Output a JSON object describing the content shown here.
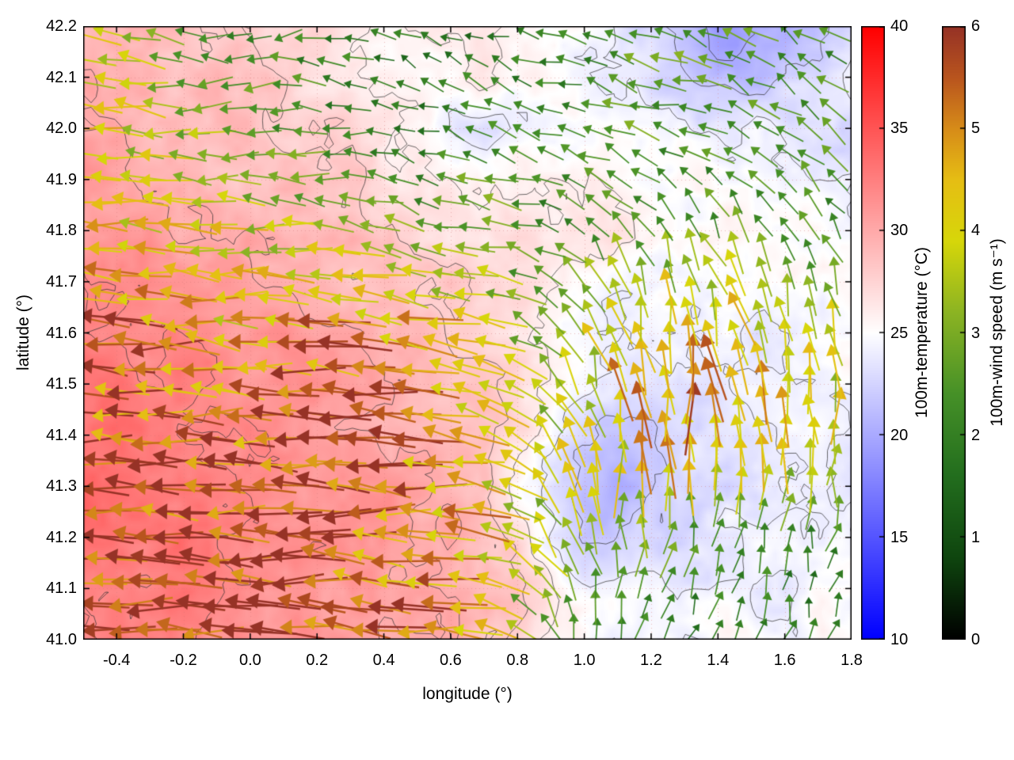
{
  "figure": {
    "background": "#ffffff",
    "grid_color": "#d77878",
    "contour_color": "#2d2d2d"
  },
  "chart_data": [
    {
      "type": "heatmap",
      "name": "100m-temperature",
      "xlabel": "longitude (°)",
      "ylabel": "latitude (°)",
      "units": "°C",
      "x_range": [
        -0.5,
        1.8
      ],
      "y_range": [
        41.0,
        42.2
      ],
      "x_tick_labels": [
        "-0.4",
        "-0.2",
        "0.0",
        "0.2",
        "0.4",
        "0.6",
        "0.8",
        "1.0",
        "1.2",
        "1.4",
        "1.6",
        "1.8"
      ],
      "x_tick_values": [
        -0.4,
        -0.2,
        0,
        0.2,
        0.4,
        0.6,
        0.8,
        1,
        1.2,
        1.4,
        1.6,
        1.8
      ],
      "y_tick_labels": [
        "41.0",
        "41.1",
        "41.2",
        "41.3",
        "41.4",
        "41.5",
        "41.6",
        "41.7",
        "41.8",
        "41.9",
        "42.0",
        "42.1",
        "42.2"
      ],
      "y_tick_values": [
        41,
        41.1,
        41.2,
        41.3,
        41.4,
        41.5,
        41.6,
        41.7,
        41.8,
        41.9,
        42,
        42.1,
        42.2
      ],
      "colorbar": {
        "label": "100m-temperature (°C)",
        "range": [
          10,
          40
        ],
        "tick_labels": [
          "10",
          "15",
          "20",
          "25",
          "30",
          "35",
          "40"
        ],
        "tick_values": [
          10,
          15,
          20,
          25,
          30,
          35,
          40
        ],
        "stops": [
          [
            10,
            "#0000ff"
          ],
          [
            25,
            "#ffffff"
          ],
          [
            40,
            "#ff0000"
          ]
        ]
      },
      "lon": [
        -0.5,
        -0.4,
        -0.3,
        -0.2,
        -0.1,
        0,
        0.1,
        0.2,
        0.3,
        0.4,
        0.5,
        0.6,
        0.7,
        0.8,
        0.9,
        1,
        1.1,
        1.2,
        1.3,
        1.4,
        1.5,
        1.6,
        1.7,
        1.8
      ],
      "lat": [
        42.2,
        42.1,
        42,
        41.9,
        41.8,
        41.7,
        41.6,
        41.5,
        41.4,
        41.3,
        41.2,
        41.1,
        41
      ],
      "values": [
        [
          29,
          29,
          29,
          29,
          28,
          28,
          27,
          27,
          26,
          26,
          26,
          26,
          27,
          26,
          25,
          25,
          24,
          23,
          21,
          19,
          20,
          21,
          22,
          23
        ],
        [
          30,
          29,
          29,
          29,
          29,
          28,
          28,
          27,
          27,
          26,
          26,
          25,
          26,
          26,
          25,
          24,
          24,
          23,
          22,
          21,
          21,
          22,
          23,
          24
        ],
        [
          30,
          30,
          29,
          29,
          29,
          29,
          28,
          28,
          27,
          26,
          25,
          24,
          23,
          24,
          25,
          25,
          25,
          24,
          24,
          24,
          24,
          24,
          23,
          23
        ],
        [
          31,
          30,
          30,
          30,
          29,
          29,
          29,
          28,
          28,
          27,
          27,
          26,
          26,
          26,
          26,
          26,
          25,
          25,
          25,
          25,
          25,
          24,
          24,
          24
        ],
        [
          31,
          31,
          31,
          30,
          30,
          30,
          29,
          29,
          29,
          28,
          28,
          27,
          27,
          27,
          26,
          26,
          26,
          25,
          25,
          25,
          25,
          25,
          25,
          24
        ],
        [
          32,
          32,
          31,
          31,
          31,
          30,
          30,
          30,
          29,
          29,
          28,
          28,
          27,
          27,
          26,
          26,
          25,
          25,
          25,
          25,
          25,
          25,
          25,
          25
        ],
        [
          33,
          32,
          32,
          32,
          31,
          31,
          31,
          30,
          30,
          29,
          29,
          28,
          28,
          27,
          26,
          25,
          24,
          24,
          24,
          24,
          24,
          24,
          25,
          25
        ],
        [
          33,
          33,
          32,
          32,
          32,
          31,
          31,
          31,
          30,
          30,
          29,
          29,
          28,
          27,
          26,
          24,
          23,
          23,
          23,
          23,
          24,
          24,
          24,
          25
        ],
        [
          33,
          33,
          33,
          32,
          32,
          32,
          31,
          31,
          31,
          30,
          30,
          29,
          28,
          27,
          25,
          23,
          22,
          22,
          23,
          23,
          23,
          24,
          24,
          24
        ],
        [
          34,
          33,
          33,
          33,
          32,
          32,
          32,
          31,
          31,
          31,
          30,
          29,
          28,
          26,
          24,
          21,
          20,
          22,
          23,
          23,
          23,
          24,
          24,
          24
        ],
        [
          33,
          33,
          33,
          33,
          32,
          32,
          32,
          32,
          31,
          31,
          30,
          30,
          29,
          27,
          24,
          22,
          22,
          23,
          23,
          24,
          24,
          24,
          24,
          24
        ],
        [
          33,
          32,
          32,
          33,
          32,
          32,
          31,
          31,
          31,
          31,
          30,
          30,
          29,
          28,
          26,
          24,
          24,
          24,
          24,
          24,
          24,
          24,
          25,
          25
        ],
        [
          32,
          32,
          32,
          32,
          31,
          31,
          31,
          31,
          31,
          30,
          30,
          30,
          29,
          28,
          26,
          25,
          24,
          24,
          24,
          25,
          25,
          25,
          25,
          25
        ]
      ]
    },
    {
      "type": "quiver",
      "name": "100m-wind",
      "units": "m s⁻¹",
      "x_range": [
        -0.5,
        1.7
      ],
      "y_range": [
        41.0,
        42.2
      ],
      "colorbar": {
        "label": "100m-wind speed (m s⁻¹)",
        "range": [
          0,
          6
        ],
        "tick_labels": [
          "0",
          "1",
          "2",
          "3",
          "4",
          "5",
          "6"
        ],
        "tick_values": [
          0,
          1,
          2,
          3,
          4,
          5,
          6
        ],
        "stops": [
          [
            0,
            "#000000"
          ],
          [
            0.8,
            "#0f460f"
          ],
          [
            1.6,
            "#236e1e"
          ],
          [
            2.4,
            "#469128"
          ],
          [
            3.2,
            "#8cb423"
          ],
          [
            3.9,
            "#d7d70a"
          ],
          [
            4.5,
            "#e6be14"
          ],
          [
            5,
            "#d78c19"
          ],
          [
            5.5,
            "#b9551e"
          ],
          [
            6,
            "#963226"
          ]
        ]
      },
      "lon": [
        -0.5,
        -0.3,
        -0.1,
        0.1,
        0.3,
        0.5,
        0.7,
        0.9,
        1.1,
        1.3,
        1.5,
        1.7
      ],
      "lat": [
        42.2,
        42,
        41.8,
        41.6,
        41.4,
        41.2,
        41
      ],
      "u": [
        [
          -3.5,
          -3,
          -2.5,
          -2,
          -2,
          -1.5,
          -1.5,
          -2,
          -2,
          -2.5,
          -2,
          -2
        ],
        [
          -4,
          -3.5,
          -3,
          -2.5,
          -2,
          -1.5,
          -2,
          -2,
          -2.5,
          -2.5,
          -2,
          -2
        ],
        [
          -4.5,
          -4,
          -4,
          -3.5,
          -3,
          -2.5,
          -3,
          -2,
          -1.5,
          -1,
          -1.5,
          -1
        ],
        [
          -5,
          -5,
          -4.5,
          -4.5,
          -5,
          -4.5,
          -4,
          -2,
          -1,
          -0.5,
          -1,
          -0.5
        ],
        [
          -5.5,
          -5.5,
          -5,
          -5.5,
          -5.5,
          -5,
          -4.5,
          -2,
          -0.5,
          0,
          -0.5,
          0
        ],
        [
          -6,
          -5.5,
          -6,
          -5.5,
          -5.5,
          -5,
          -4.5,
          -2,
          0,
          0.5,
          0.5,
          0.5
        ],
        [
          -5.5,
          -6,
          -5.5,
          -6,
          -5.5,
          -5,
          -4.5,
          -1,
          0.5,
          0.5,
          0.5,
          0.5
        ]
      ],
      "v": [
        [
          0.5,
          0.5,
          0,
          -0.5,
          0.5,
          1,
          0.5,
          0.5,
          1,
          1,
          1.5,
          1
        ],
        [
          0,
          0.5,
          0,
          0.5,
          0,
          0.5,
          1,
          0.5,
          1,
          0.5,
          1,
          1.5
        ],
        [
          0,
          0.5,
          0,
          0.5,
          0.5,
          1,
          0.5,
          1,
          2,
          2.5,
          2,
          2
        ],
        [
          0.5,
          0,
          0.5,
          0,
          0.5,
          1,
          1,
          2,
          4,
          4.5,
          4,
          3.5
        ],
        [
          0,
          0.5,
          0,
          0.5,
          0,
          0.5,
          1,
          3,
          4.5,
          5,
          4.5,
          4
        ],
        [
          0.5,
          0,
          0.5,
          0,
          0.5,
          0,
          0.5,
          3,
          3,
          2.5,
          2,
          2
        ],
        [
          0,
          0.5,
          0,
          0,
          0.5,
          0.5,
          0.5,
          2,
          2,
          1.5,
          2,
          1.5
        ]
      ]
    }
  ]
}
